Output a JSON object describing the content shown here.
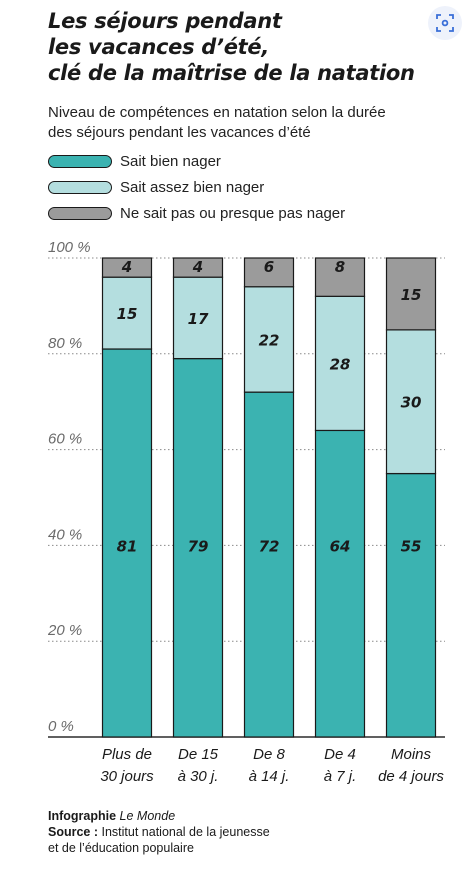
{
  "header": {
    "title_lines": [
      "Les séjours pendant",
      "les vacances d’été,",
      "clé de la maîtrise de la natation"
    ],
    "subtitle_lines": [
      "Niveau de compétences en natation selon la durée",
      "des séjours pendant les vacances d’été"
    ]
  },
  "toolbar": {
    "scan_icon": "scan-icon"
  },
  "colors": {
    "sait_bien_nager": "#3bb3b1",
    "sait_assez_bien_nager": "#b4dedf",
    "ne_sait_pas": "#9b9b9b",
    "grid": "#8a8a8a"
  },
  "legend": [
    {
      "label": "Sait bien nager",
      "color": "#3bb3b1"
    },
    {
      "label": "Sait assez bien nager",
      "color": "#b4dedf"
    },
    {
      "label": "Ne sait pas ou presque pas nager",
      "color": "#9b9b9b"
    }
  ],
  "chart_data": {
    "type": "bar",
    "stacked": true,
    "title": "Les séjours pendant les vacances d’été, clé de la maîtrise de la natation",
    "subtitle": "Niveau de compétences en natation selon la durée des séjours pendant les vacances d’été",
    "ylim": [
      0,
      100
    ],
    "yticks": [
      "0 %",
      "20 %",
      "40 %",
      "60 %",
      "80 %",
      "100 %"
    ],
    "ytick_values": [
      0,
      20,
      40,
      60,
      80,
      100
    ],
    "grid": true,
    "legend_position": "top-left",
    "categories": [
      [
        "Plus de",
        "30 jours"
      ],
      [
        "De 15",
        "à 30 j."
      ],
      [
        "De 8",
        "à 14 j."
      ],
      [
        "De 4",
        "à 7 j."
      ],
      [
        "Moins",
        "de 4 jours"
      ]
    ],
    "series": [
      {
        "name": "Sait bien nager",
        "values": [
          81,
          79,
          72,
          64,
          55
        ]
      },
      {
        "name": "Sait assez bien nager",
        "values": [
          15,
          17,
          22,
          28,
          30
        ]
      },
      {
        "name": "Ne sait pas ou presque pas nager",
        "values": [
          4,
          4,
          6,
          8,
          15
        ]
      }
    ]
  },
  "footer": {
    "infographie_label": "Infographie",
    "infographie_source": "Le Monde",
    "source_label": "Source :",
    "source_text_line1": "Institut national de la jeunesse",
    "source_text_line2": "et de l’éducation populaire"
  }
}
